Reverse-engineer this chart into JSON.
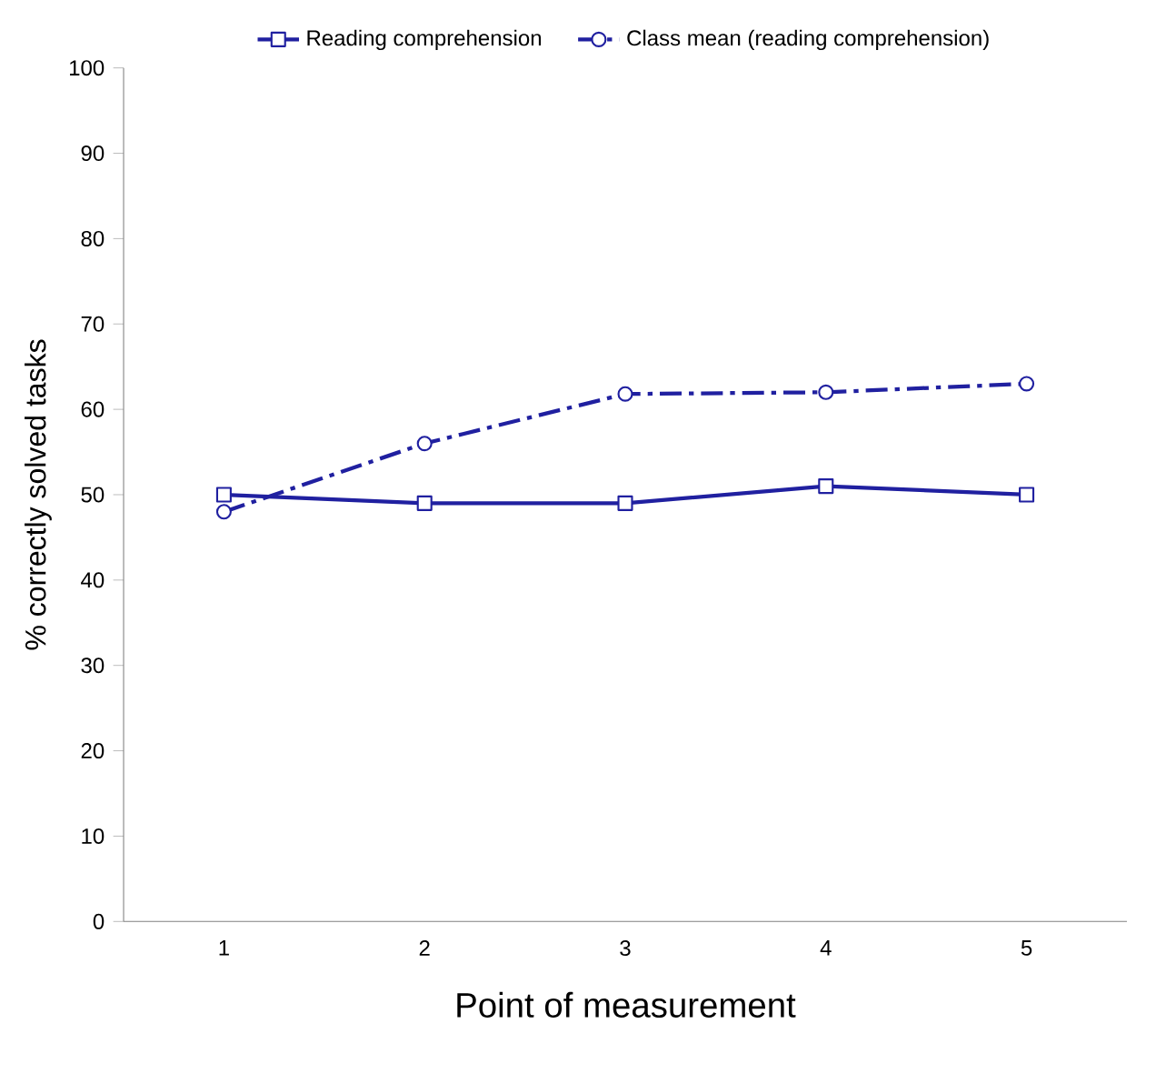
{
  "chart_data": {
    "type": "line",
    "xlabel": "Point of measurement",
    "ylabel": "% correctly solved tasks",
    "categories": [
      "1",
      "2",
      "3",
      "4",
      "5"
    ],
    "series": [
      {
        "name": "Reading comprehension",
        "color": "#2020a0",
        "values": [
          50,
          49,
          49,
          51,
          50
        ],
        "marker": "square",
        "line_style": "solid"
      },
      {
        "name": "Class mean (reading comprehension)",
        "color": "#2020a0",
        "values": [
          48,
          56,
          61.8,
          62,
          63
        ],
        "marker": "circle",
        "line_style": "dashdot"
      }
    ],
    "ylim": [
      0,
      100
    ],
    "yticks": [
      0,
      10,
      20,
      30,
      40,
      50,
      60,
      70,
      80,
      90,
      100
    ],
    "legend": "top",
    "grid": false
  }
}
